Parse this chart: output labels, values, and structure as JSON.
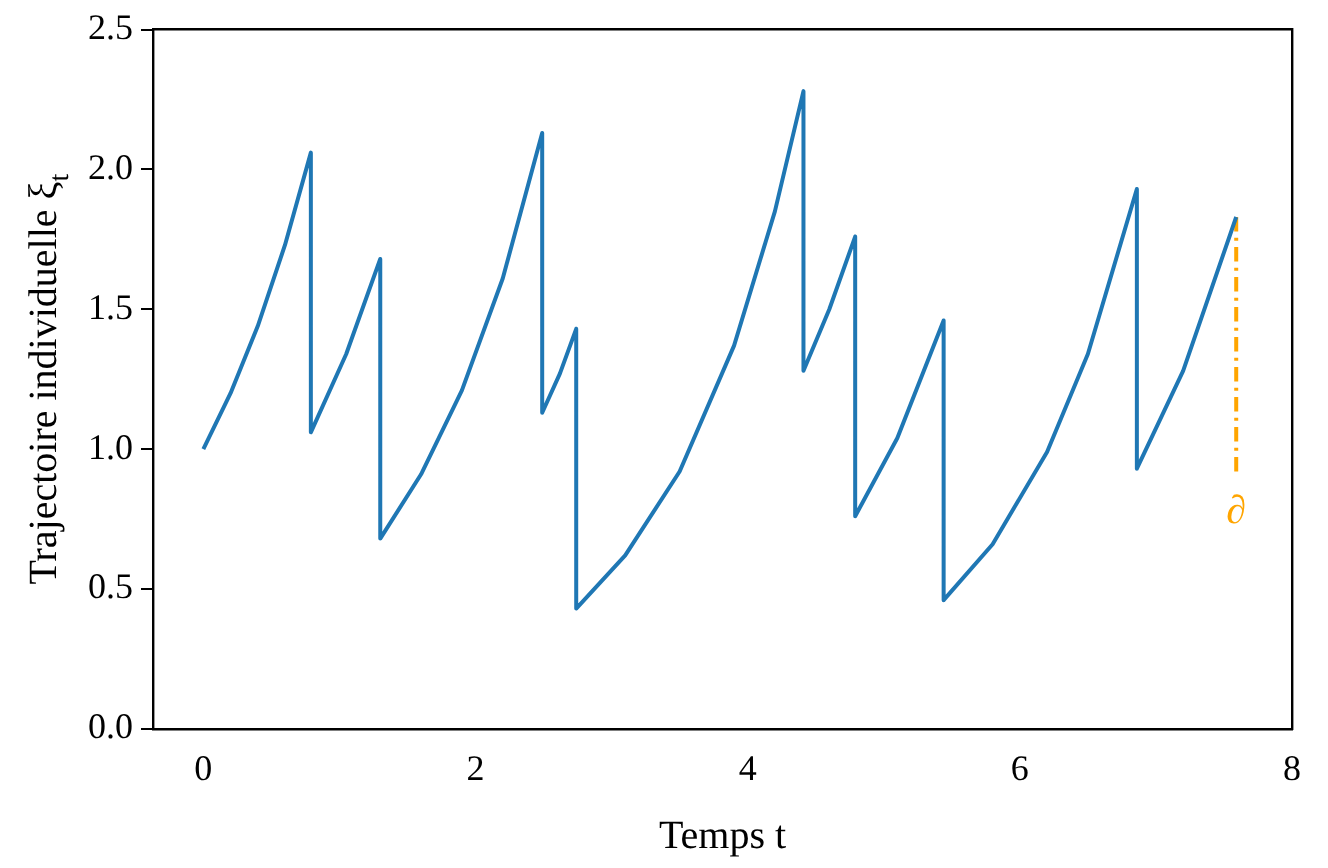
{
  "chart_data": {
    "type": "line",
    "xlabel": "Temps t",
    "ylabel": "Trajectoire individuelle ξ$_{t}$",
    "xlim": [
      -0.37,
      8.0
    ],
    "xticks": [
      0,
      2,
      4,
      6,
      8
    ],
    "ylim": [
      0,
      2.5
    ],
    "yticks": [
      {
        "value": 0,
        "label": "0.0"
      },
      {
        "value": 0.5,
        "label": "0.5"
      },
      {
        "value": 1,
        "label": "1.0"
      },
      {
        "value": 1.5,
        "label": "1.5"
      },
      {
        "value": 2,
        "label": "2.0"
      },
      {
        "value": 2.5,
        "label": "2.5"
      }
    ],
    "grid": false,
    "legend": false,
    "marker": "none",
    "series": [
      {
        "color": "#1f77b4",
        "line_style": "solid",
        "x": [
          0,
          0.2,
          0.4,
          0.6,
          0.79,
          0.79,
          1.05,
          1.3,
          1.3,
          1.6,
          1.9,
          2.2,
          2.49,
          2.49,
          2.62,
          2.74,
          2.74,
          3.1,
          3.5,
          3.9,
          4.2,
          4.41,
          4.41,
          4.6,
          4.79,
          4.79,
          5.1,
          5.44,
          5.44,
          5.8,
          6.2,
          6.5,
          6.86,
          6.86,
          7.2,
          7.59
        ],
        "values": [
          1.0,
          1.2,
          1.44,
          1.73,
          2.06,
          1.06,
          1.34,
          1.68,
          0.68,
          0.91,
          1.21,
          1.61,
          2.13,
          1.13,
          1.27,
          1.43,
          0.43,
          0.62,
          0.92,
          1.37,
          1.85,
          2.28,
          1.28,
          1.5,
          1.76,
          0.76,
          1.04,
          1.46,
          0.46,
          0.66,
          0.99,
          1.34,
          1.93,
          0.93,
          1.28,
          1.83
        ]
      },
      {
        "name": "∂",
        "color": "#ffa500",
        "line_style": "dashed",
        "x": [
          7.59,
          7.59
        ],
        "values": [
          0.92,
          1.83
        ]
      }
    ]
  }
}
